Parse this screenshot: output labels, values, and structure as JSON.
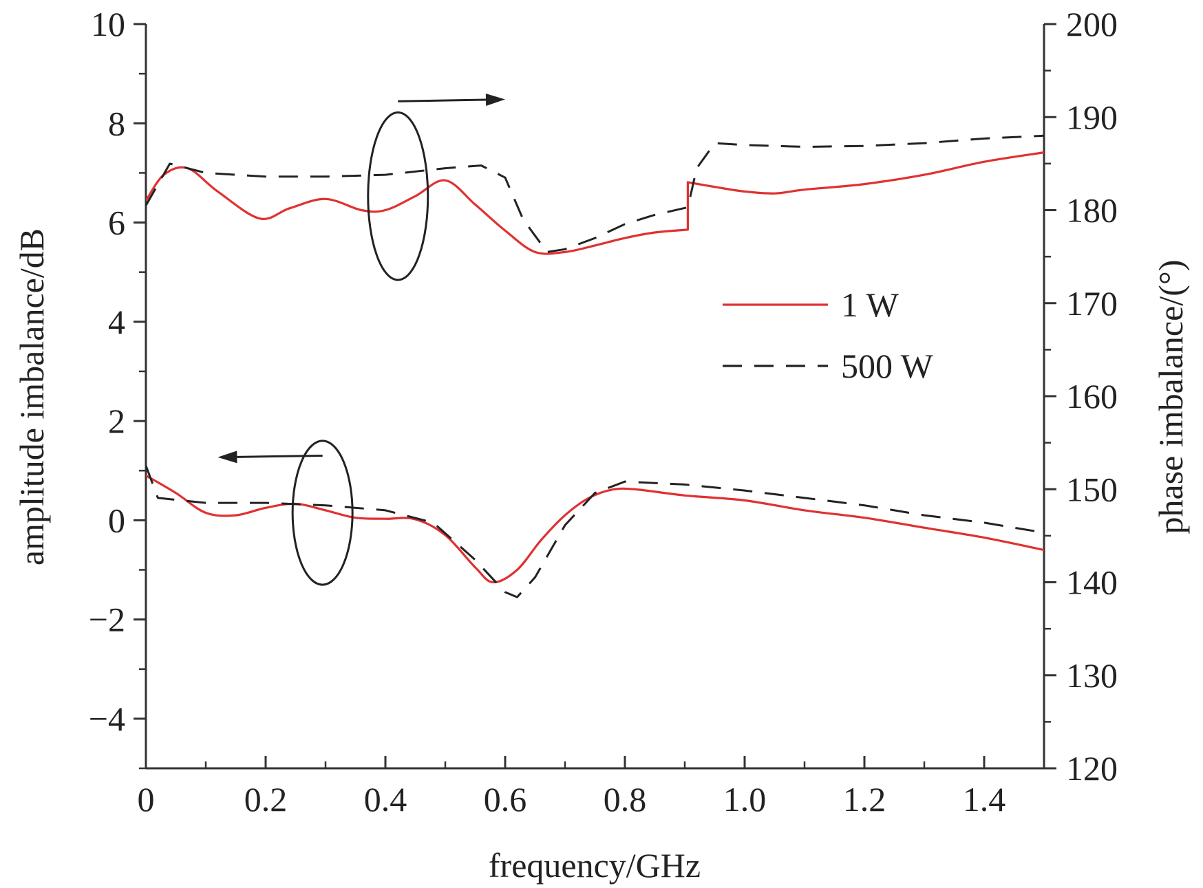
{
  "chart_data": {
    "type": "line",
    "xlabel": "frequency/GHz",
    "ylabel_left": "amplitude imbalance/dB",
    "ylabel_right": "phase imbalance/(°)",
    "xlim": [
      0,
      1.5
    ],
    "ylim_left": [
      -5,
      10
    ],
    "ylim_right": [
      120,
      200
    ],
    "x_ticks": [
      0,
      0.2,
      0.4,
      0.6,
      0.8,
      1.0,
      1.2,
      1.4
    ],
    "x_tick_labels": [
      "0",
      "0.2",
      "0.4",
      "0.6",
      "0.8",
      "1.0",
      "1.2",
      "1.4"
    ],
    "y_left_ticks": [
      -4,
      -2,
      0,
      2,
      4,
      6,
      8,
      10
    ],
    "y_left_tick_labels": [
      "−4",
      "−2",
      "0",
      "2",
      "4",
      "6",
      "8",
      "10"
    ],
    "y_right_ticks": [
      120,
      130,
      140,
      150,
      160,
      170,
      180,
      190,
      200
    ],
    "y_right_tick_labels": [
      "120",
      "130",
      "140",
      "150",
      "160",
      "170",
      "180",
      "190",
      "200"
    ],
    "grid": false,
    "legend_position": "right-middle",
    "series": [
      {
        "name": "1 W",
        "quantity": "phase",
        "axis": "right",
        "color": "#e03131",
        "dash": "solid",
        "x": [
          0.0,
          0.03,
          0.07,
          0.12,
          0.19,
          0.24,
          0.3,
          0.36,
          0.4,
          0.45,
          0.5,
          0.55,
          0.6,
          0.65,
          0.7,
          0.75,
          0.8,
          0.85,
          0.905,
          0.905,
          0.95,
          1.0,
          1.05,
          1.1,
          1.2,
          1.3,
          1.4,
          1.5
        ],
        "y": [
          181.0,
          183.8,
          184.5,
          182.0,
          179.1,
          180.2,
          181.2,
          180.0,
          180.0,
          181.5,
          183.2,
          180.6,
          177.8,
          175.5,
          175.5,
          176.2,
          177.0,
          177.6,
          177.9,
          183.0,
          182.5,
          182.0,
          181.8,
          182.2,
          182.8,
          183.8,
          185.2,
          186.2
        ]
      },
      {
        "name": "500 W",
        "quantity": "phase",
        "axis": "right",
        "color": "#222222",
        "dash": "dashed",
        "x": [
          0.0,
          0.04,
          0.1,
          0.2,
          0.3,
          0.4,
          0.5,
          0.56,
          0.6,
          0.63,
          0.67,
          0.7,
          0.75,
          0.8,
          0.85,
          0.905,
          0.92,
          0.95,
          1.0,
          1.1,
          1.2,
          1.3,
          1.4,
          1.5
        ],
        "y": [
          180.5,
          185.0,
          184.0,
          183.6,
          183.6,
          183.8,
          184.5,
          184.8,
          183.5,
          179.0,
          175.5,
          175.8,
          177.0,
          178.5,
          179.5,
          180.3,
          184.5,
          187.2,
          187.0,
          186.8,
          186.9,
          187.2,
          187.7,
          188.0
        ]
      },
      {
        "name": "1 W",
        "quantity": "amplitude",
        "axis": "left",
        "color": "#e03131",
        "dash": "solid",
        "x": [
          0.0,
          0.05,
          0.1,
          0.15,
          0.2,
          0.25,
          0.3,
          0.35,
          0.4,
          0.45,
          0.5,
          0.55,
          0.58,
          0.62,
          0.66,
          0.7,
          0.74,
          0.78,
          0.82,
          0.9,
          1.0,
          1.1,
          1.2,
          1.3,
          1.4,
          1.5
        ],
        "y": [
          0.9,
          0.55,
          0.15,
          0.1,
          0.25,
          0.33,
          0.2,
          0.05,
          0.03,
          0.02,
          -0.3,
          -0.95,
          -1.25,
          -1.0,
          -0.4,
          0.1,
          0.45,
          0.62,
          0.62,
          0.5,
          0.4,
          0.2,
          0.05,
          -0.15,
          -0.35,
          -0.6
        ]
      },
      {
        "name": "500 W",
        "quantity": "amplitude",
        "axis": "left",
        "color": "#222222",
        "dash": "dashed",
        "x": [
          0.0,
          0.02,
          0.1,
          0.2,
          0.3,
          0.4,
          0.48,
          0.55,
          0.6,
          0.62,
          0.65,
          0.7,
          0.75,
          0.8,
          0.9,
          1.0,
          1.1,
          1.2,
          1.3,
          1.4,
          1.5
        ],
        "y": [
          1.1,
          0.45,
          0.35,
          0.35,
          0.3,
          0.2,
          -0.05,
          -0.8,
          -1.45,
          -1.55,
          -1.15,
          -0.1,
          0.55,
          0.78,
          0.72,
          0.6,
          0.45,
          0.3,
          0.1,
          -0.05,
          -0.25
        ]
      }
    ],
    "annotations": [
      {
        "type": "ellipse-arrow",
        "target_axis": "right",
        "cx": 0.421,
        "cy": 181.5,
        "rx": 0.05,
        "ry": 9,
        "arrow_from": [
          0.421,
          191.7
        ],
        "arrow_to": [
          0.6,
          191.9
        ]
      },
      {
        "type": "ellipse-arrow",
        "target_axis": "left",
        "cx": 0.295,
        "cy": 0.15,
        "rx": 0.05,
        "ry": 1.45,
        "arrow_from": [
          0.295,
          1.3
        ],
        "arrow_to": [
          0.12,
          1.27
        ]
      }
    ]
  }
}
